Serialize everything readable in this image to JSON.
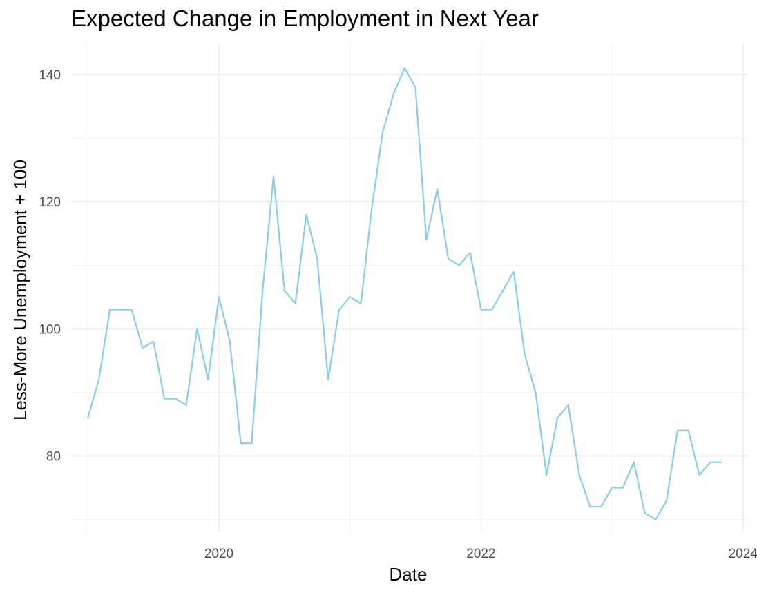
{
  "chart_data": {
    "type": "line",
    "title": "Expected Change in Employment in Next Year",
    "xlabel": "Date",
    "ylabel": "Less-More Unemployment + 100",
    "x_ticks": [
      "2020",
      "2022",
      "2024"
    ],
    "y_ticks": [
      "80",
      "100",
      "120",
      "140"
    ],
    "xlim": [
      "2018-11-15",
      "2024-01-15"
    ],
    "ylim": [
      68,
      145
    ],
    "grid": true,
    "line_color": "#87CEEB",
    "series": [
      {
        "x": [
          "2019-01",
          "2019-02",
          "2019-03",
          "2019-04",
          "2019-05",
          "2019-06",
          "2019-07",
          "2019-08",
          "2019-09",
          "2019-10",
          "2019-11",
          "2019-12",
          "2020-01",
          "2020-02",
          "2020-03",
          "2020-04",
          "2020-05",
          "2020-06",
          "2020-07",
          "2020-08",
          "2020-09",
          "2020-10",
          "2020-11",
          "2020-12",
          "2021-01",
          "2021-02",
          "2021-03",
          "2021-04",
          "2021-05",
          "2021-06",
          "2021-07",
          "2021-08",
          "2021-09",
          "2021-10",
          "2021-11",
          "2021-12",
          "2022-01",
          "2022-02",
          "2022-03",
          "2022-04",
          "2022-05",
          "2022-06",
          "2022-07",
          "2022-08",
          "2022-09",
          "2022-10",
          "2022-11",
          "2022-12",
          "2023-01",
          "2023-02",
          "2023-03",
          "2023-04",
          "2023-05",
          "2023-06",
          "2023-07",
          "2023-08",
          "2023-09",
          "2023-10",
          "2023-11"
        ],
        "values": [
          86,
          92,
          103,
          103,
          103,
          97,
          98,
          89,
          89,
          88,
          100,
          92,
          105,
          98,
          82,
          82,
          106,
          124,
          106,
          104,
          118,
          111,
          92,
          103,
          105,
          104,
          119,
          131,
          137,
          141,
          138,
          114,
          122,
          111,
          110,
          112,
          103,
          103,
          106,
          109,
          96,
          90,
          77,
          86,
          88,
          77,
          72,
          72,
          75,
          75,
          79,
          71,
          70,
          73,
          84,
          84,
          77,
          79,
          79
        ]
      }
    ]
  }
}
